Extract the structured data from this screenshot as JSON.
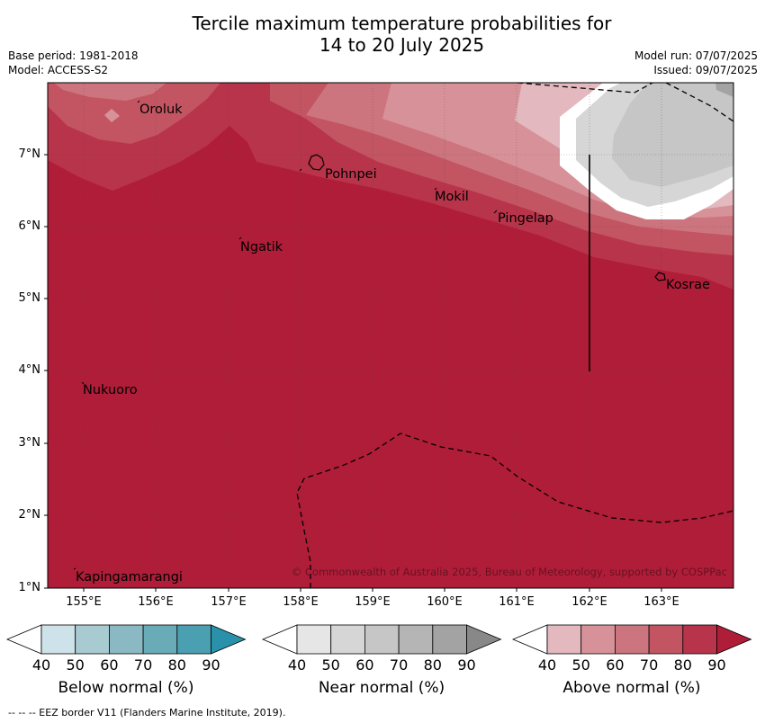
{
  "title": {
    "line1": "Tercile maximum temperature probabilities for",
    "line2": "14 to 20 July 2025"
  },
  "meta_left": {
    "base_period": "Base period: 1981-2018",
    "model": "Model: ACCESS-S2"
  },
  "meta_right": {
    "model_run": "Model run: 07/07/2025",
    "issued": "Issued: 09/07/2025"
  },
  "map": {
    "lon_range": [
      154.5,
      164.0
    ],
    "lat_range": [
      1.0,
      8.0
    ],
    "x_ticks": [
      "155°E",
      "156°E",
      "157°E",
      "158°E",
      "159°E",
      "160°E",
      "161°E",
      "162°E",
      "163°E"
    ],
    "y_ticks": [
      "7°N",
      "6°N",
      "5°N",
      "4°N",
      "3°N",
      "2°N",
      "1°N"
    ],
    "places": [
      "Oroluk",
      "Pohnpei",
      "Mokil",
      "Pingelap",
      "Ngatik",
      "Kosrae",
      "Nukuoro",
      "Kapingamarangi"
    ],
    "copyright": "© Commonwealth of Australia 2025, Bureau of Meteorology, supported by COSPPac"
  },
  "colorbars": [
    {
      "label": "Below normal (%)",
      "ticks": [
        "40",
        "50",
        "60",
        "70",
        "80",
        "90"
      ],
      "colors": [
        "#ffffff",
        "#cde3e9",
        "#a8cad1",
        "#8bb9c3",
        "#6aabb8",
        "#4aa0b1",
        "#2a91aa"
      ]
    },
    {
      "label": "Near normal (%)",
      "ticks": [
        "40",
        "50",
        "60",
        "70",
        "80",
        "90"
      ],
      "colors": [
        "#ffffff",
        "#e6e6e6",
        "#d6d6d6",
        "#c6c6c6",
        "#b5b5b5",
        "#a3a3a3",
        "#888888"
      ]
    },
    {
      "label": "Above normal (%)",
      "ticks": [
        "40",
        "50",
        "60",
        "70",
        "80",
        "90"
      ],
      "colors": [
        "#ffffff",
        "#e3b8bf",
        "#d79299",
        "#cd757e",
        "#c35563",
        "#b8344a",
        "#b01d38"
      ]
    }
  ],
  "footnote": "-- -- -- EEZ border V11 (Flanders Marine Institute, 2019)."
}
